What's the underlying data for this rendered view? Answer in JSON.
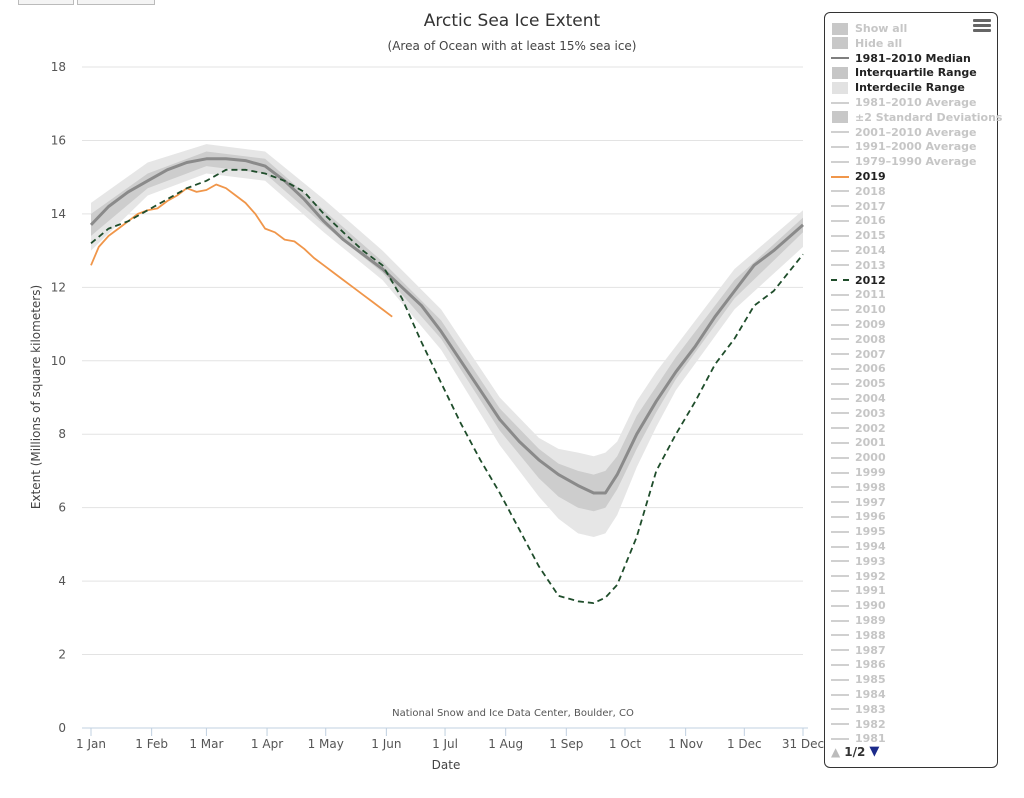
{
  "chart_data": {
    "type": "line",
    "title": "Arctic Sea Ice Extent",
    "subtitle": "(Area of Ocean with at least 15% sea ice)",
    "xlabel": "Date",
    "ylabel": "Extent (Millions of square kilometers)",
    "credit": "National Snow and Ice Data Center, Boulder, CO",
    "ylim": [
      0,
      18
    ],
    "yticks": [
      0,
      2,
      4,
      6,
      8,
      10,
      12,
      14,
      16,
      18
    ],
    "xlim": [
      1,
      365
    ],
    "x_unit": "day of year",
    "xticks": [
      {
        "day": 1,
        "label": "1 Jan"
      },
      {
        "day": 32,
        "label": "1 Feb"
      },
      {
        "day": 60,
        "label": "1 Mar"
      },
      {
        "day": 91,
        "label": "1 Apr"
      },
      {
        "day": 121,
        "label": "1 May"
      },
      {
        "day": 152,
        "label": "1 Jun"
      },
      {
        "day": 182,
        "label": "1 Jul"
      },
      {
        "day": 213,
        "label": "1 Aug"
      },
      {
        "day": 244,
        "label": "1 Sep"
      },
      {
        "day": 274,
        "label": "1 Oct"
      },
      {
        "day": 305,
        "label": "1 Nov"
      },
      {
        "day": 335,
        "label": "1 Dec"
      },
      {
        "day": 365,
        "label": "31 Dec"
      }
    ],
    "grid": true,
    "legend_position": "right",
    "series": [
      {
        "name": "1981–2010 Median",
        "color": "#8a8a8a",
        "style": "solid",
        "x": [
          1,
          10,
          20,
          30,
          40,
          50,
          60,
          70,
          80,
          90,
          100,
          110,
          120,
          130,
          140,
          150,
          160,
          170,
          180,
          190,
          200,
          210,
          220,
          230,
          240,
          250,
          258,
          264,
          270,
          280,
          290,
          300,
          310,
          320,
          330,
          340,
          350,
          365
        ],
        "y": [
          13.7,
          14.2,
          14.6,
          14.9,
          15.2,
          15.4,
          15.5,
          15.5,
          15.45,
          15.3,
          14.9,
          14.4,
          13.8,
          13.3,
          12.9,
          12.5,
          12.0,
          11.5,
          10.8,
          10.0,
          9.2,
          8.4,
          7.8,
          7.3,
          6.9,
          6.6,
          6.4,
          6.4,
          6.9,
          8.0,
          8.9,
          9.7,
          10.4,
          11.2,
          11.9,
          12.6,
          13.0,
          13.7
        ]
      },
      {
        "name": "2019",
        "color": "#f0964a",
        "style": "solid",
        "x": [
          1,
          5,
          10,
          15,
          20,
          25,
          30,
          35,
          40,
          45,
          50,
          55,
          60,
          65,
          70,
          75,
          80,
          85,
          90,
          95,
          100,
          105,
          110,
          115,
          120,
          125,
          130,
          135,
          140,
          145,
          150,
          155
        ],
        "y": [
          12.6,
          13.1,
          13.4,
          13.6,
          13.8,
          14.0,
          14.1,
          14.15,
          14.35,
          14.5,
          14.7,
          14.6,
          14.65,
          14.8,
          14.7,
          14.5,
          14.3,
          14.0,
          13.6,
          13.5,
          13.3,
          13.25,
          13.05,
          12.8,
          12.6,
          12.4,
          12.2,
          12.0,
          11.8,
          11.6,
          11.4,
          11.2
        ]
      },
      {
        "name": "2012",
        "color": "#1f4d2b",
        "style": "dash",
        "x": [
          1,
          10,
          20,
          30,
          40,
          50,
          60,
          70,
          80,
          90,
          100,
          110,
          120,
          130,
          140,
          150,
          160,
          170,
          180,
          190,
          200,
          210,
          220,
          230,
          240,
          250,
          258,
          264,
          270,
          280,
          290,
          300,
          310,
          320,
          330,
          340,
          350,
          365
        ],
        "y": [
          13.2,
          13.6,
          13.8,
          14.1,
          14.4,
          14.7,
          14.9,
          15.2,
          15.2,
          15.1,
          14.9,
          14.6,
          14.0,
          13.5,
          13.0,
          12.6,
          11.7,
          10.5,
          9.4,
          8.3,
          7.3,
          6.4,
          5.4,
          4.4,
          3.6,
          3.45,
          3.4,
          3.55,
          3.9,
          5.2,
          7.0,
          8.0,
          8.9,
          9.9,
          10.6,
          11.5,
          11.9,
          12.9
        ]
      }
    ],
    "bands": [
      {
        "name": "Interdecile Range",
        "color": "#e6e6e6",
        "x": [
          1,
          30,
          60,
          90,
          120,
          150,
          180,
          210,
          230,
          240,
          250,
          258,
          264,
          270,
          280,
          290,
          300,
          330,
          365
        ],
        "low": [
          13.0,
          14.5,
          15.1,
          14.9,
          13.5,
          12.2,
          10.3,
          7.7,
          6.3,
          5.7,
          5.3,
          5.2,
          5.3,
          5.8,
          7.1,
          8.2,
          9.2,
          11.4,
          13.1
        ],
        "high": [
          14.3,
          15.4,
          15.9,
          15.7,
          14.4,
          13.0,
          11.4,
          9.0,
          7.9,
          7.6,
          7.5,
          7.4,
          7.5,
          7.8,
          8.9,
          9.7,
          10.4,
          12.5,
          14.1
        ]
      },
      {
        "name": "Interquartile Range",
        "color": "#cdcdcd",
        "x": [
          1,
          30,
          60,
          90,
          120,
          150,
          180,
          210,
          230,
          240,
          250,
          258,
          264,
          270,
          280,
          290,
          300,
          330,
          365
        ],
        "low": [
          13.4,
          14.7,
          15.3,
          15.1,
          13.7,
          12.4,
          10.6,
          8.1,
          6.8,
          6.3,
          6.0,
          5.9,
          6.0,
          6.5,
          7.6,
          8.6,
          9.5,
          11.7,
          13.5
        ],
        "high": [
          14.0,
          15.1,
          15.7,
          15.5,
          14.1,
          12.7,
          11.1,
          8.7,
          7.6,
          7.2,
          7.0,
          6.9,
          7.0,
          7.4,
          8.5,
          9.3,
          10.1,
          12.2,
          13.9
        ]
      }
    ]
  },
  "legend": {
    "menu_icon": "hamburger-menu-icon",
    "items": [
      {
        "label": "Show all",
        "state": "inactive",
        "symbol": "box",
        "color": "#c8c8c8"
      },
      {
        "label": "Hide all",
        "state": "inactive",
        "symbol": "box",
        "color": "#c8c8c8"
      },
      {
        "label": "1981–2010 Median",
        "state": "active",
        "symbol": "line",
        "color": "#7f7f7f"
      },
      {
        "label": "Interquartile Range",
        "state": "active",
        "symbol": "box",
        "color": "#c6c6c6"
      },
      {
        "label": "Interdecile Range",
        "state": "active",
        "symbol": "box",
        "color": "#e2e2e2"
      },
      {
        "label": "1981–2010 Average",
        "state": "inactive",
        "symbol": "line",
        "color": "#d0d0d0"
      },
      {
        "label": "±2 Standard Deviations",
        "state": "inactive",
        "symbol": "box",
        "color": "#c8c8c8"
      },
      {
        "label": "2001–2010 Average",
        "state": "inactive",
        "symbol": "line",
        "color": "#d0d0d0"
      },
      {
        "label": "1991–2000 Average",
        "state": "inactive",
        "symbol": "line",
        "color": "#d0d0d0"
      },
      {
        "label": "1979–1990 Average",
        "state": "inactive",
        "symbol": "line",
        "color": "#d0d0d0"
      },
      {
        "label": "2019",
        "state": "active",
        "symbol": "line",
        "color": "#f0964a"
      },
      {
        "label": "2018",
        "state": "inactive",
        "symbol": "line",
        "color": "#d0d0d0"
      },
      {
        "label": "2017",
        "state": "inactive",
        "symbol": "line",
        "color": "#d0d0d0"
      },
      {
        "label": "2016",
        "state": "inactive",
        "symbol": "line",
        "color": "#d0d0d0"
      },
      {
        "label": "2015",
        "state": "inactive",
        "symbol": "line",
        "color": "#d0d0d0"
      },
      {
        "label": "2014",
        "state": "inactive",
        "symbol": "line",
        "color": "#d0d0d0"
      },
      {
        "label": "2013",
        "state": "inactive",
        "symbol": "line",
        "color": "#d0d0d0"
      },
      {
        "label": "2012",
        "state": "active",
        "symbol": "dash",
        "color": "#1f4d2b"
      },
      {
        "label": "2011",
        "state": "inactive",
        "symbol": "line",
        "color": "#d0d0d0"
      },
      {
        "label": "2010",
        "state": "inactive",
        "symbol": "line",
        "color": "#d0d0d0"
      },
      {
        "label": "2009",
        "state": "inactive",
        "symbol": "line",
        "color": "#d0d0d0"
      },
      {
        "label": "2008",
        "state": "inactive",
        "symbol": "line",
        "color": "#d0d0d0"
      },
      {
        "label": "2007",
        "state": "inactive",
        "symbol": "line",
        "color": "#d0d0d0"
      },
      {
        "label": "2006",
        "state": "inactive",
        "symbol": "line",
        "color": "#d0d0d0"
      },
      {
        "label": "2005",
        "state": "inactive",
        "symbol": "line",
        "color": "#d0d0d0"
      },
      {
        "label": "2004",
        "state": "inactive",
        "symbol": "line",
        "color": "#d0d0d0"
      },
      {
        "label": "2003",
        "state": "inactive",
        "symbol": "line",
        "color": "#d0d0d0"
      },
      {
        "label": "2002",
        "state": "inactive",
        "symbol": "line",
        "color": "#d0d0d0"
      },
      {
        "label": "2001",
        "state": "inactive",
        "symbol": "line",
        "color": "#d0d0d0"
      },
      {
        "label": "2000",
        "state": "inactive",
        "symbol": "line",
        "color": "#d0d0d0"
      },
      {
        "label": "1999",
        "state": "inactive",
        "symbol": "line",
        "color": "#d0d0d0"
      },
      {
        "label": "1998",
        "state": "inactive",
        "symbol": "line",
        "color": "#d0d0d0"
      },
      {
        "label": "1997",
        "state": "inactive",
        "symbol": "line",
        "color": "#d0d0d0"
      },
      {
        "label": "1996",
        "state": "inactive",
        "symbol": "line",
        "color": "#d0d0d0"
      },
      {
        "label": "1995",
        "state": "inactive",
        "symbol": "line",
        "color": "#d0d0d0"
      },
      {
        "label": "1994",
        "state": "inactive",
        "symbol": "line",
        "color": "#d0d0d0"
      },
      {
        "label": "1993",
        "state": "inactive",
        "symbol": "line",
        "color": "#d0d0d0"
      },
      {
        "label": "1992",
        "state": "inactive",
        "symbol": "line",
        "color": "#d0d0d0"
      },
      {
        "label": "1991",
        "state": "inactive",
        "symbol": "line",
        "color": "#d0d0d0"
      },
      {
        "label": "1990",
        "state": "inactive",
        "symbol": "line",
        "color": "#d0d0d0"
      },
      {
        "label": "1989",
        "state": "inactive",
        "symbol": "line",
        "color": "#d0d0d0"
      },
      {
        "label": "1988",
        "state": "inactive",
        "symbol": "line",
        "color": "#d0d0d0"
      },
      {
        "label": "1987",
        "state": "inactive",
        "symbol": "line",
        "color": "#d0d0d0"
      },
      {
        "label": "1986",
        "state": "inactive",
        "symbol": "line",
        "color": "#d0d0d0"
      },
      {
        "label": "1985",
        "state": "inactive",
        "symbol": "line",
        "color": "#d0d0d0"
      },
      {
        "label": "1984",
        "state": "inactive",
        "symbol": "line",
        "color": "#d0d0d0"
      },
      {
        "label": "1983",
        "state": "inactive",
        "symbol": "line",
        "color": "#d0d0d0"
      },
      {
        "label": "1982",
        "state": "inactive",
        "symbol": "line",
        "color": "#d0d0d0"
      },
      {
        "label": "1981",
        "state": "inactive",
        "symbol": "line",
        "color": "#d0d0d0"
      }
    ],
    "pager": {
      "up_icon": "▲",
      "text": "1/2",
      "down_icon": "▼"
    }
  }
}
